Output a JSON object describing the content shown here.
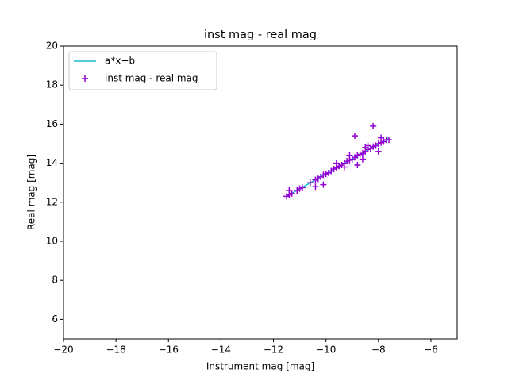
{
  "chart_data": {
    "type": "scatter",
    "title": "inst mag - real mag",
    "x_label": "Instrument mag [mag]",
    "y_label": "Real mag [mag]",
    "xlim": [
      -20,
      -5
    ],
    "ylim": [
      5,
      20
    ],
    "xticks": [
      {
        "value": -20,
        "label": "−20"
      },
      {
        "value": -18,
        "label": "−18"
      },
      {
        "value": -16,
        "label": "−16"
      },
      {
        "value": -14,
        "label": "−14"
      },
      {
        "value": -12,
        "label": "−12"
      },
      {
        "value": -10,
        "label": "−10"
      },
      {
        "value": -8,
        "label": "−8"
      },
      {
        "value": -6,
        "label": "−6"
      }
    ],
    "yticks": [
      6,
      8,
      10,
      12,
      14,
      16,
      18,
      20
    ],
    "legend": "upper left",
    "series": [
      {
        "name": "a*x+b",
        "kind": "line",
        "color": "#17becf",
        "x": [
          -11.5,
          -7.6
        ],
        "values": [
          12.3,
          15.3
        ]
      },
      {
        "name": "inst mag - real mag",
        "kind": "plus",
        "color": "#9400d3",
        "x": [
          -11.5,
          -11.4,
          -11.3,
          -11.1,
          -11.0,
          -10.9,
          -10.6,
          -10.4,
          -10.3,
          -10.2,
          -10.1,
          -10.0,
          -9.9,
          -9.8,
          -9.7,
          -9.6,
          -9.5,
          -9.4,
          -9.3,
          -9.2,
          -9.1,
          -9.0,
          -8.9,
          -8.8,
          -8.7,
          -8.6,
          -8.5,
          -8.4,
          -8.3,
          -8.2,
          -8.1,
          -8.0,
          -7.9,
          -7.8,
          -7.7,
          -7.6,
          -8.9,
          -8.2,
          -8.8,
          -10.1,
          -10.4,
          -11.4,
          -9.6,
          -9.3,
          -8.6,
          -8.4,
          -7.9,
          -8.0,
          -8.5,
          -9.1
        ],
        "values": [
          12.3,
          12.38,
          12.45,
          12.6,
          12.7,
          12.75,
          13.0,
          13.15,
          13.2,
          13.3,
          13.4,
          13.45,
          13.5,
          13.6,
          13.7,
          13.75,
          13.85,
          13.9,
          14.0,
          14.1,
          14.15,
          14.2,
          14.3,
          14.4,
          14.45,
          14.5,
          14.6,
          14.7,
          14.75,
          14.85,
          14.9,
          15.0,
          15.05,
          15.1,
          15.2,
          15.2,
          15.4,
          15.9,
          13.9,
          12.9,
          12.8,
          12.6,
          14.0,
          13.8,
          14.2,
          14.9,
          15.3,
          14.6,
          14.8,
          14.4
        ]
      }
    ]
  }
}
